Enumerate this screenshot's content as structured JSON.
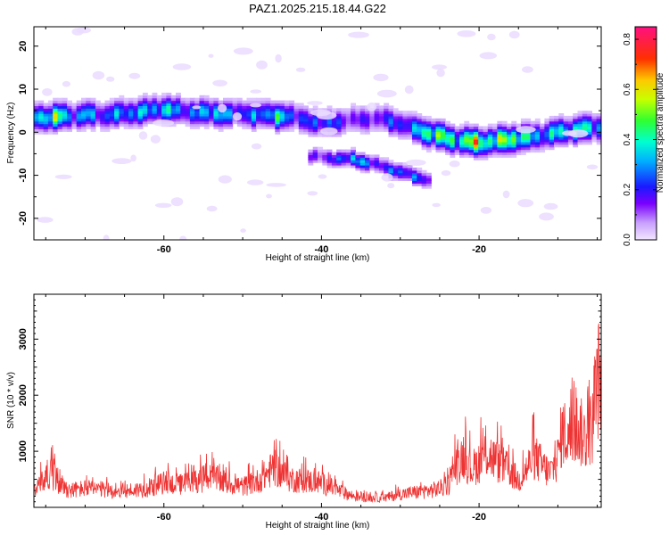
{
  "figure_title": "PAZ1.2025.215.18.44.G22",
  "chart_data": [
    {
      "type": "heatmap",
      "title": "PAZ1.2025.215.18.44.G22",
      "xlabel": "Height of straight line (km)",
      "ylabel": "Frequency (Hz)",
      "xlim": [
        -76.5,
        -4.5
      ],
      "ylim": [
        -25,
        24.5
      ],
      "xticks": [
        -60,
        -40,
        -20
      ],
      "yticks": [
        -20,
        -10,
        0,
        10,
        20
      ],
      "colorbar": {
        "label": "Normalized spectral amplitude",
        "range": [
          0,
          0.85
        ],
        "ticks": [
          0.0,
          0.2,
          0.4,
          0.6,
          0.8
        ],
        "colormap": "rainbow (lavender-purple-blue-cyan-green-yellow-red-magenta)"
      },
      "ridges": [
        {
          "name": "main",
          "points": [
            {
              "x": -76,
              "y": 3.5,
              "a": 0.45
            },
            {
              "x": -74,
              "y": 3.6,
              "a": 0.65
            },
            {
              "x": -72,
              "y": 3.8,
              "a": 0.35
            },
            {
              "x": -70,
              "y": 4.2,
              "a": 0.4
            },
            {
              "x": -68,
              "y": 4.0,
              "a": 0.3
            },
            {
              "x": -66,
              "y": 4.3,
              "a": 0.35
            },
            {
              "x": -64,
              "y": 4.6,
              "a": 0.4
            },
            {
              "x": -62,
              "y": 5.0,
              "a": 0.38
            },
            {
              "x": -60,
              "y": 5.5,
              "a": 0.45
            },
            {
              "x": -58,
              "y": 5.0,
              "a": 0.35
            },
            {
              "x": -56,
              "y": 4.8,
              "a": 0.3
            },
            {
              "x": -54,
              "y": 4.5,
              "a": 0.5
            },
            {
              "x": -52,
              "y": 4.4,
              "a": 0.35
            },
            {
              "x": -50,
              "y": 4.5,
              "a": 0.3
            },
            {
              "x": -48,
              "y": 4.2,
              "a": 0.35
            },
            {
              "x": -46,
              "y": 4.0,
              "a": 0.5
            },
            {
              "x": -44,
              "y": 3.8,
              "a": 0.35
            },
            {
              "x": -42,
              "y": 3.0,
              "a": 0.25
            },
            {
              "x": -40,
              "y": 2.0,
              "a": 0.35
            },
            {
              "x": -38,
              "y": 2.5,
              "a": 0.25
            },
            {
              "x": -36,
              "y": 3.0,
              "a": 0.2
            },
            {
              "x": -34,
              "y": 3.2,
              "a": 0.2
            },
            {
              "x": -32,
              "y": 3.2,
              "a": 0.25
            },
            {
              "x": -30,
              "y": 2.0,
              "a": 0.3
            },
            {
              "x": -28,
              "y": 0.8,
              "a": 0.35
            },
            {
              "x": -26,
              "y": -0.3,
              "a": 0.7
            },
            {
              "x": -24,
              "y": -1.3,
              "a": 0.5
            },
            {
              "x": -22,
              "y": -2.0,
              "a": 0.6
            },
            {
              "x": -20,
              "y": -2.3,
              "a": 0.75
            },
            {
              "x": -18,
              "y": -2.0,
              "a": 0.5
            },
            {
              "x": -16,
              "y": -1.5,
              "a": 0.75
            },
            {
              "x": -14,
              "y": -1.2,
              "a": 0.45
            },
            {
              "x": -12,
              "y": -0.6,
              "a": 0.4
            },
            {
              "x": -10,
              "y": 0.0,
              "a": 0.45
            },
            {
              "x": -8,
              "y": 0.6,
              "a": 0.5
            },
            {
              "x": -6,
              "y": 1.0,
              "a": 0.45
            },
            {
              "x": -4.5,
              "y": 1.5,
              "a": 0.4
            }
          ]
        },
        {
          "name": "secondary",
          "points": [
            {
              "x": -41,
              "y": -5.5,
              "a": 0.2
            },
            {
              "x": -38,
              "y": -6.0,
              "a": 0.25
            },
            {
              "x": -36,
              "y": -6.2,
              "a": 0.45
            },
            {
              "x": -34,
              "y": -7.0,
              "a": 0.3
            },
            {
              "x": -32,
              "y": -8.0,
              "a": 0.25
            },
            {
              "x": -30,
              "y": -9.2,
              "a": 0.35
            },
            {
              "x": -28,
              "y": -10.2,
              "a": 0.3
            },
            {
              "x": -26.5,
              "y": -11.0,
              "a": 0.2
            }
          ]
        }
      ]
    },
    {
      "type": "line",
      "xlabel": "Height of straight line (km)",
      "ylabel": "SNR (10 * v/v)",
      "xlim": [
        -76.5,
        -4.5
      ],
      "ylim": [
        0,
        3800
      ],
      "xticks": [
        -60,
        -40,
        -20
      ],
      "yticks": [
        1000,
        2000,
        3000
      ],
      "color": "#ee3333",
      "envelope": [
        {
          "x": -76.5,
          "y": 550
        },
        {
          "x": -75.5,
          "y": 650
        },
        {
          "x": -74.5,
          "y": 950
        },
        {
          "x": -73.5,
          "y": 700
        },
        {
          "x": -72,
          "y": 450
        },
        {
          "x": -70,
          "y": 500
        },
        {
          "x": -68,
          "y": 470
        },
        {
          "x": -66,
          "y": 420
        },
        {
          "x": -64,
          "y": 450
        },
        {
          "x": -62,
          "y": 500
        },
        {
          "x": -60,
          "y": 650
        },
        {
          "x": -58,
          "y": 600
        },
        {
          "x": -56,
          "y": 700
        },
        {
          "x": -54,
          "y": 800
        },
        {
          "x": -52,
          "y": 650
        },
        {
          "x": -50,
          "y": 550
        },
        {
          "x": -48,
          "y": 700
        },
        {
          "x": -46,
          "y": 1050
        },
        {
          "x": -44,
          "y": 750
        },
        {
          "x": -42,
          "y": 700
        },
        {
          "x": -40,
          "y": 650
        },
        {
          "x": -38,
          "y": 450
        },
        {
          "x": -36,
          "y": 300
        },
        {
          "x": -34,
          "y": 250
        },
        {
          "x": -32,
          "y": 250
        },
        {
          "x": -30,
          "y": 350
        },
        {
          "x": -28,
          "y": 400
        },
        {
          "x": -26,
          "y": 450
        },
        {
          "x": -24,
          "y": 550
        },
        {
          "x": -23,
          "y": 1050
        },
        {
          "x": -22,
          "y": 1400
        },
        {
          "x": -21,
          "y": 1000
        },
        {
          "x": -20,
          "y": 1200
        },
        {
          "x": -19,
          "y": 1450
        },
        {
          "x": -18,
          "y": 1250
        },
        {
          "x": -17,
          "y": 1100
        },
        {
          "x": -16,
          "y": 950
        },
        {
          "x": -15,
          "y": 700
        },
        {
          "x": -14,
          "y": 1000
        },
        {
          "x": -13,
          "y": 1350
        },
        {
          "x": -12,
          "y": 1100
        },
        {
          "x": -11,
          "y": 900
        },
        {
          "x": -10,
          "y": 1300
        },
        {
          "x": -9.5,
          "y": 2000
        },
        {
          "x": -8.5,
          "y": 1900
        },
        {
          "x": -7.5,
          "y": 2100
        },
        {
          "x": -6.5,
          "y": 1800
        },
        {
          "x": -5.5,
          "y": 2200
        },
        {
          "x": -5,
          "y": 3300
        },
        {
          "x": -4.5,
          "y": 3600
        }
      ]
    }
  ]
}
